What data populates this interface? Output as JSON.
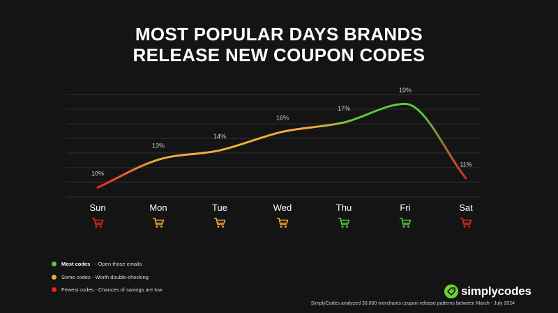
{
  "title": {
    "line1": "MOST POPULAR DAYS BRANDS",
    "line2": "RELEASE NEW COUPON CODES"
  },
  "chart_data": {
    "type": "line",
    "categories": [
      "Sun",
      "Mon",
      "Tue",
      "Wed",
      "Thu",
      "Fri",
      "Sat"
    ],
    "values": [
      10,
      13,
      14,
      16,
      17,
      19,
      11
    ],
    "value_labels": [
      "10%",
      "13%",
      "14%",
      "16%",
      "17%",
      "19%",
      "11%"
    ],
    "unit": "%",
    "ylim": [
      9,
      20
    ],
    "grid": true,
    "smooth": true,
    "tier": [
      "fewest",
      "some",
      "some",
      "some",
      "most",
      "most",
      "fewest"
    ],
    "xlabel": "",
    "ylabel": ""
  },
  "colors": {
    "background": "#141414",
    "most": "#5dc944",
    "some": "#f2ab3b",
    "fewest": "#e3261e",
    "grid": "#3a3a3a",
    "brand": "#6bd236"
  },
  "legend": [
    {
      "tier": "most",
      "bold": "Most codes",
      "text": "Open those emails"
    },
    {
      "tier": "some",
      "bold": "",
      "text": "Some codes - Worth double-checking"
    },
    {
      "tier": "fewest",
      "bold": "",
      "text": "Fewest codes - Chances of savings are low"
    }
  ],
  "legend_separator": "-",
  "icons": {
    "day_marker": "shopping-cart-icon",
    "logo": "coupon-tag-icon"
  },
  "brand": {
    "name": "simplycodes"
  },
  "footnote": "SimplyCodes analyzed 30,000 merchants coupon release patterns  between March - July 2024"
}
